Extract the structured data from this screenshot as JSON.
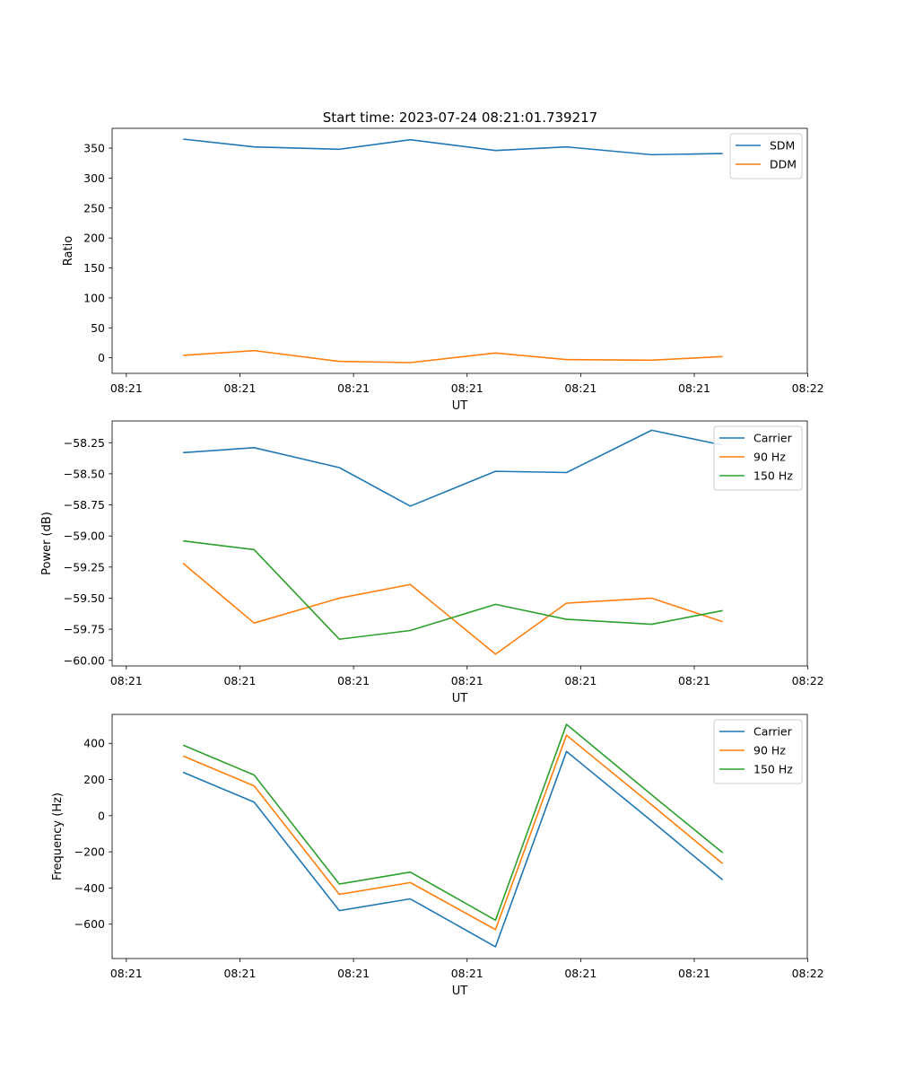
{
  "figure": {
    "title": "Start time: 2023-07-24 08:21:01.739217"
  },
  "colors": {
    "blue": "#1f77b4",
    "orange": "#ff7f0e",
    "green": "#2ca02c"
  },
  "chart_data": [
    {
      "type": "line",
      "title": "Start time: 2023-07-24 08:21:01.739217",
      "xlabel": "UT",
      "ylabel": "Ratio",
      "xlim": [
        -0.25,
        5.87
      ],
      "ylim": [
        -26,
        383
      ],
      "xticks": [
        -0.125,
        0.875,
        1.875,
        2.875,
        3.875,
        4.875,
        5.875
      ],
      "xtick_labels": [
        "08:21",
        "08:21",
        "08:21",
        "08:21",
        "08:21",
        "08:21",
        "08:22"
      ],
      "yticks": [
        0,
        50,
        100,
        150,
        200,
        250,
        300,
        350
      ],
      "ytick_labels": [
        "0",
        "50",
        "100",
        "150",
        "200",
        "250",
        "300",
        "350"
      ],
      "x": [
        0.375,
        1.0,
        1.75,
        2.375,
        3.125,
        3.75,
        4.5,
        5.125
      ],
      "series": [
        {
          "name": "SDM",
          "color": "#1f77b4",
          "values": [
            365,
            352,
            348,
            364,
            346,
            352,
            339,
            341
          ]
        },
        {
          "name": "DDM",
          "color": "#ff7f0e",
          "values": [
            4,
            12,
            -6,
            -8,
            8,
            -3,
            -4,
            2
          ]
        }
      ],
      "legend": "top-right"
    },
    {
      "type": "line",
      "xlabel": "UT",
      "ylabel": "Power (dB)",
      "xlim": [
        -0.25,
        5.87
      ],
      "ylim": [
        -60.045,
        -58.075
      ],
      "xticks": [
        -0.125,
        0.875,
        1.875,
        2.875,
        3.875,
        4.875,
        5.875
      ],
      "xtick_labels": [
        "08:21",
        "08:21",
        "08:21",
        "08:21",
        "08:21",
        "08:21",
        "08:22"
      ],
      "yticks": [
        -60.0,
        -59.75,
        -59.5,
        -59.25,
        -59.0,
        -58.75,
        -58.5,
        -58.25
      ],
      "ytick_labels": [
        "−60.00",
        "−59.75",
        "−59.50",
        "−59.25",
        "−59.00",
        "−58.75",
        "−58.50",
        "−58.25"
      ],
      "x": [
        0.375,
        1.0,
        1.75,
        2.375,
        3.125,
        3.75,
        4.5,
        5.125
      ],
      "series": [
        {
          "name": "Carrier",
          "color": "#1f77b4",
          "values": [
            -58.33,
            -58.29,
            -58.45,
            -58.76,
            -58.48,
            -58.49,
            -58.15,
            -58.27
          ]
        },
        {
          "name": "90 Hz",
          "color": "#ff7f0e",
          "values": [
            -59.22,
            -59.7,
            -59.5,
            -59.39,
            -59.95,
            -59.54,
            -59.5,
            -59.69
          ]
        },
        {
          "name": "150 Hz",
          "color": "#2ca02c",
          "values": [
            -59.04,
            -59.11,
            -59.83,
            -59.76,
            -59.55,
            -59.67,
            -59.71,
            -59.6
          ]
        }
      ],
      "legend": "top-right"
    },
    {
      "type": "line",
      "xlabel": "UT",
      "ylabel": "Frequency (Hz)",
      "xlim": [
        -0.25,
        5.87
      ],
      "ylim": [
        -790,
        560
      ],
      "xticks": [
        -0.125,
        0.875,
        1.875,
        2.875,
        3.875,
        4.875,
        5.875
      ],
      "xtick_labels": [
        "08:21",
        "08:21",
        "08:21",
        "08:21",
        "08:21",
        "08:21",
        "08:22"
      ],
      "yticks": [
        -600,
        -400,
        -200,
        0,
        200,
        400
      ],
      "ytick_labels": [
        "−600",
        "−400",
        "−200",
        "0",
        "200",
        "400"
      ],
      "x": [
        0.375,
        1.0,
        1.75,
        2.375,
        3.125,
        3.75,
        4.5,
        5.125
      ],
      "series": [
        {
          "name": "Carrier",
          "color": "#1f77b4",
          "values": [
            240,
            75,
            -525,
            -460,
            -725,
            355,
            -30,
            -355
          ]
        },
        {
          "name": "90 Hz",
          "color": "#ff7f0e",
          "values": [
            330,
            165,
            -435,
            -370,
            -630,
            445,
            60,
            -265
          ]
        },
        {
          "name": "150 Hz",
          "color": "#2ca02c",
          "values": [
            390,
            225,
            -378,
            -312,
            -578,
            505,
            115,
            -205
          ]
        }
      ],
      "legend": "top-right"
    }
  ]
}
